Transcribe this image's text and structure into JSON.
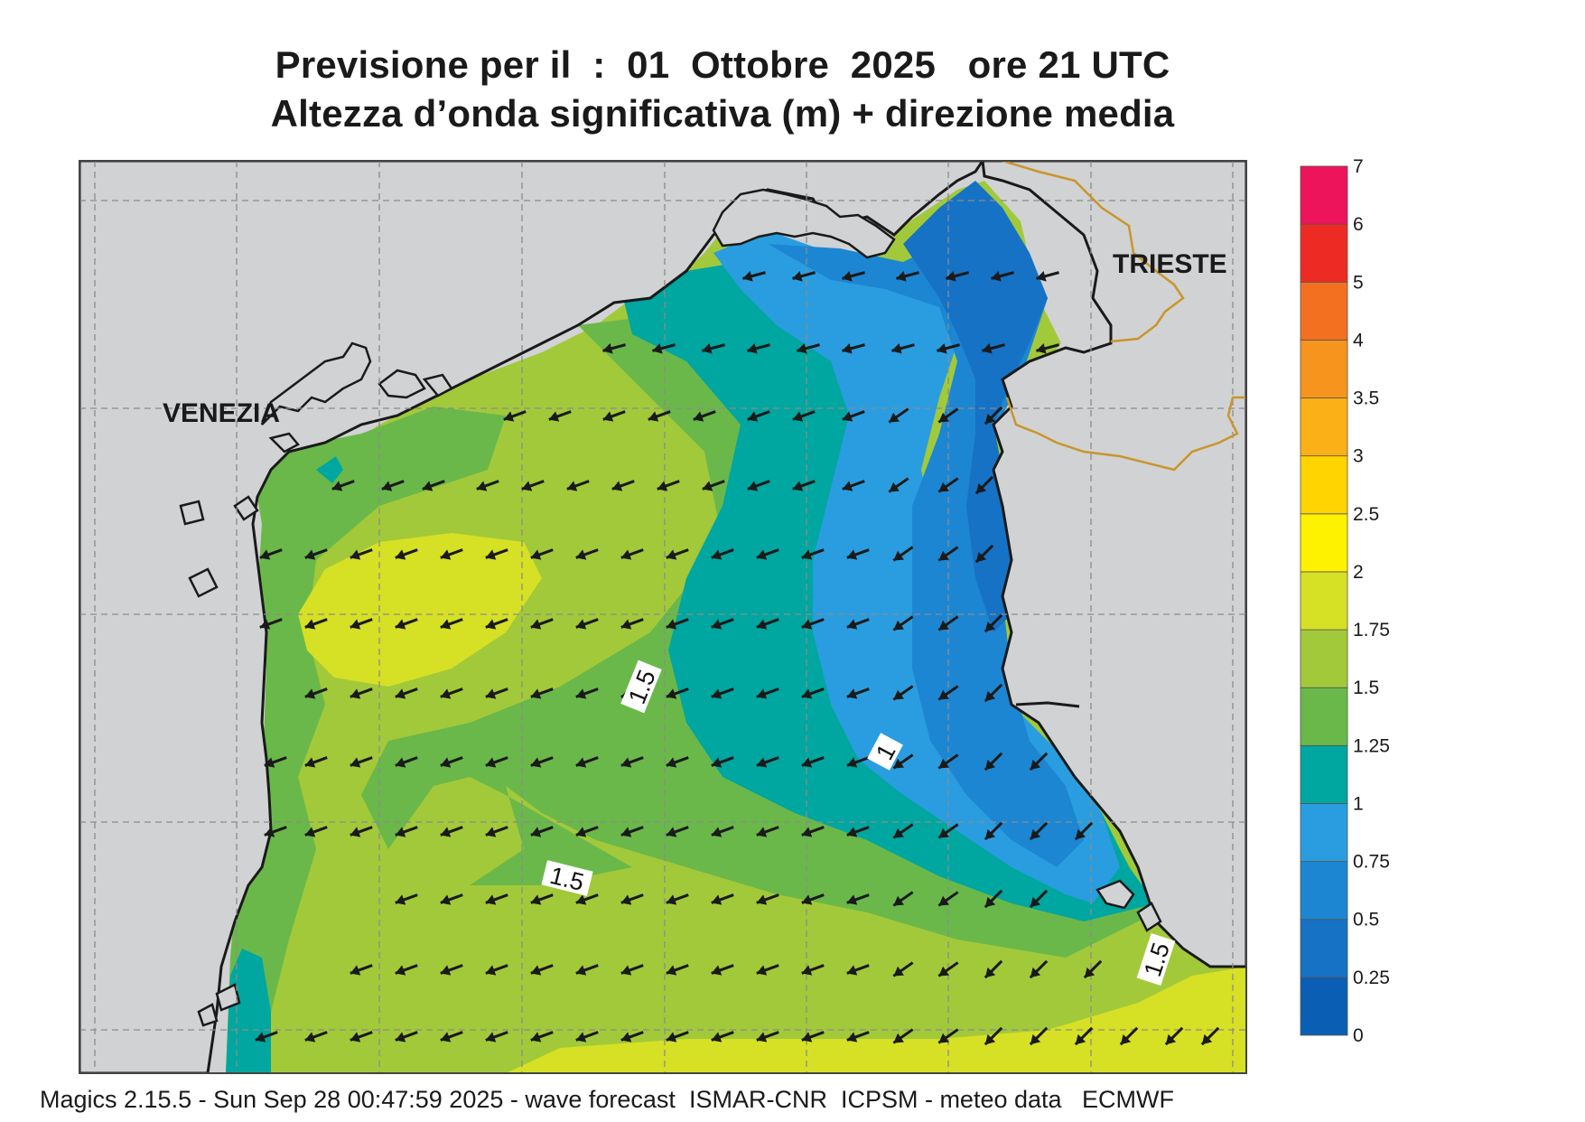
{
  "header": {
    "title_line1": "Previsione per il  :  01  Ottobre  2025   ore 21 UTC",
    "title_line2": "Altezza d’onda significativa (m) + direzione media"
  },
  "map_labels": {
    "venezia": "VENEZIA",
    "trieste": "TRIESTE"
  },
  "contour_labels": [
    "1.5",
    "1",
    "1.5",
    "1.5"
  ],
  "colorbar": {
    "levels": [
      {
        "label": "0",
        "color": "#0a5fb4"
      },
      {
        "label": "0.25",
        "color": "#1672c5"
      },
      {
        "label": "0.5",
        "color": "#1c86d3"
      },
      {
        "label": "0.75",
        "color": "#2a9de0"
      },
      {
        "label": "1",
        "color": "#00a6a0"
      },
      {
        "label": "1.25",
        "color": "#6ab84a"
      },
      {
        "label": "1.5",
        "color": "#a2c93a"
      },
      {
        "label": "1.75",
        "color": "#d6e024"
      },
      {
        "label": "2",
        "color": "#fff200"
      },
      {
        "label": "2.5",
        "color": "#ffd400"
      },
      {
        "label": "3",
        "color": "#fbb018"
      },
      {
        "label": "3.5",
        "color": "#f7941d"
      },
      {
        "label": "4",
        "color": "#f37021"
      },
      {
        "label": "5",
        "color": "#ee2a24"
      },
      {
        "label": "6",
        "color": "#ed145b"
      },
      {
        "label": "7",
        "color": ""
      }
    ]
  },
  "map_colors": {
    "land": "#d1d2d4",
    "coast": "#1a1a1a",
    "border": "#c8962a",
    "grid": "#8c8c8c",
    "arrow": "#1a1a1a"
  },
  "footer": {
    "text": "Magics 2.15.5 - Sun Sep 28 00:47:59 2025 - wave forecast  ISMAR-CNR  ICPSM - meteo data   ECMWF"
  }
}
